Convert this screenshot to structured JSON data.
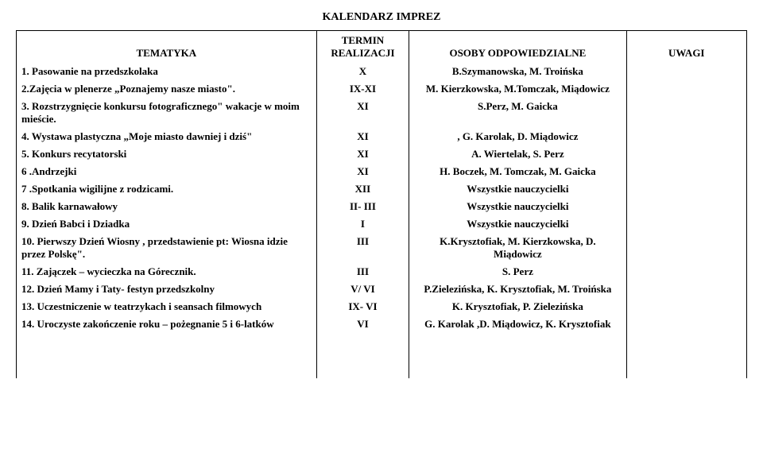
{
  "title": "KALENDARZ   IMPREZ",
  "headers": {
    "col1": "TEMATYKA",
    "col2a": "TERMIN",
    "col2b": "REALIZACJI",
    "col3": "OSOBY ODPOWIEDZIALNE",
    "col4": "UWAGI"
  },
  "rows": [
    {
      "topic": "1. Pasowanie na przedszkolaka",
      "term": "X",
      "people": "B.Szymanowska, M. Troińska"
    },
    {
      "topic": "2.Zajęcia w plenerze „Poznajemy nasze miasto\".",
      "term": "IX-XI",
      "people": "M. Kierzkowska, M.Tomczak, Miądowicz"
    },
    {
      "topic": "3. Rozstrzygnięcie konkursu fotograficznego\" wakacje w moim mieście.",
      "term": "XI",
      "people": "S.Perz, M. Gaicka"
    },
    {
      "topic": "4. Wystawa plastyczna „Moje miasto dawniej i dziś\"",
      "term": "XI",
      "people": ", G. Karolak,  D. Miądowicz"
    },
    {
      "topic": "5. Konkurs recytatorski",
      "term": "XI",
      "people": "A. Wiertelak, S. Perz"
    },
    {
      "topic": "6 .Andrzejki",
      "term": "XI",
      "people": "H. Boczek, M. Tomczak, M. Gaicka"
    },
    {
      "topic": "7 .Spotkania wigilijne z rodzicami.",
      "term": "XII",
      "people": "Wszystkie  nauczycielki"
    },
    {
      "topic": "8. Balik karnawałowy",
      "term": "II- III",
      "people": "Wszystkie  nauczycielki"
    },
    {
      "topic": "9. Dzień Babci i Dziadka",
      "term": "I",
      "people": "Wszystkie  nauczycielki"
    },
    {
      "topic": "10. Pierwszy Dzień Wiosny , przedstawienie pt: Wiosna idzie przez Polskę\".",
      "term": "III",
      "people": "K.Krysztofiak, M. Kierzkowska, D. Miądowicz"
    },
    {
      "topic": "11. Zajączek – wycieczka na Górecznik.",
      "term": "III",
      "people": "S. Perz"
    },
    {
      "topic": "12. Dzień Mamy i Taty- festyn przedszkolny",
      "term": "V/ VI",
      "people": "P.Zielezińska, K. Krysztofiak, M. Troińska"
    },
    {
      "topic": "13. Uczestniczenie w teatrzykach i seansach filmowych",
      "term": "IX- VI",
      "people": "K. Krysztofiak, P. Zielezińska"
    },
    {
      "topic": "14. Uroczyste zakończenie roku – pożegnanie 5 i 6-latków",
      "term": "VI",
      "people": "G. Karolak ,D. Miądowicz, K. Krysztofiak"
    }
  ]
}
